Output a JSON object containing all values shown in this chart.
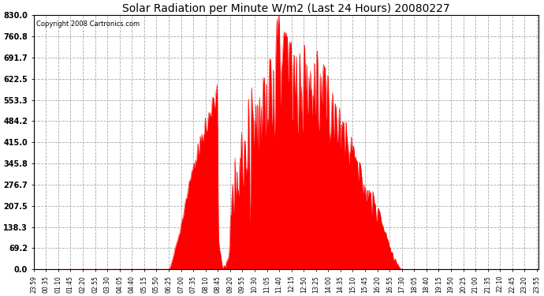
{
  "title": "Solar Radiation per Minute W/m2 (Last 24 Hours) 20080227",
  "copyright_text": "Copyright 2008 Cartronics.com",
  "background_color": "#ffffff",
  "plot_bg_color": "#ffffff",
  "bar_color": "#ff0000",
  "grid_color": "#aaaaaa",
  "y_max": 830.0,
  "y_min": 0.0,
  "y_ticks": [
    0.0,
    69.2,
    138.3,
    207.5,
    276.7,
    345.8,
    415.0,
    484.2,
    553.3,
    622.5,
    691.7,
    760.8,
    830.0
  ],
  "x_labels": [
    "23:59",
    "00:35",
    "01:10",
    "01:45",
    "02:20",
    "02:55",
    "03:30",
    "04:05",
    "04:40",
    "05:15",
    "05:50",
    "06:25",
    "07:00",
    "07:35",
    "08:10",
    "08:45",
    "09:20",
    "09:55",
    "10:30",
    "11:05",
    "11:40",
    "12:15",
    "12:50",
    "13:25",
    "14:00",
    "14:35",
    "15:10",
    "15:45",
    "16:20",
    "16:55",
    "17:30",
    "18:05",
    "18:40",
    "19:15",
    "19:50",
    "20:25",
    "21:00",
    "21:35",
    "22:10",
    "22:45",
    "23:20",
    "23:55"
  ]
}
